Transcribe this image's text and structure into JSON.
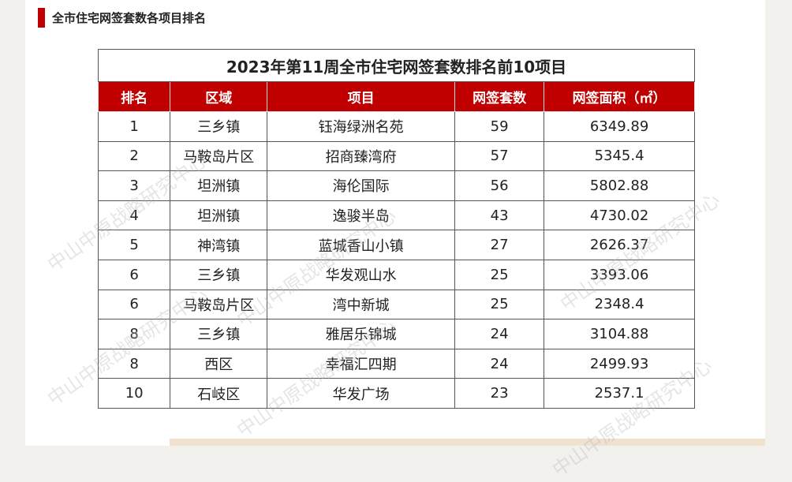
{
  "header": {
    "title": "全市住宅网签套数各项目排名"
  },
  "watermark": "中山中原战略研究中心",
  "table": {
    "title": "2023年第11周全市住宅网签套数排名前10项目",
    "columns": [
      "排名",
      "区域",
      "项目",
      "网签套数",
      "网签面积（㎡）"
    ],
    "rows": [
      [
        1,
        "三乡镇",
        "钰海绿洲名苑",
        59,
        6349.89
      ],
      [
        2,
        "马鞍岛片区",
        "招商臻湾府",
        57,
        5345.4
      ],
      [
        3,
        "坦洲镇",
        "海伦国际",
        56,
        5802.88
      ],
      [
        4,
        "坦洲镇",
        "逸骏半岛",
        43,
        4730.02
      ],
      [
        5,
        "神湾镇",
        "蓝城香山小镇",
        27,
        2626.37
      ],
      [
        6,
        "三乡镇",
        "华发观山水",
        25,
        3393.06
      ],
      [
        6,
        "马鞍岛片区",
        "湾中新城",
        25,
        2348.4
      ],
      [
        8,
        "三乡镇",
        "雅居乐锦城",
        24,
        3104.88
      ],
      [
        8,
        "西区",
        "幸福汇四期",
        24,
        2499.93
      ],
      [
        10,
        "石岐区",
        "华发广场",
        23,
        2537.1
      ]
    ]
  }
}
